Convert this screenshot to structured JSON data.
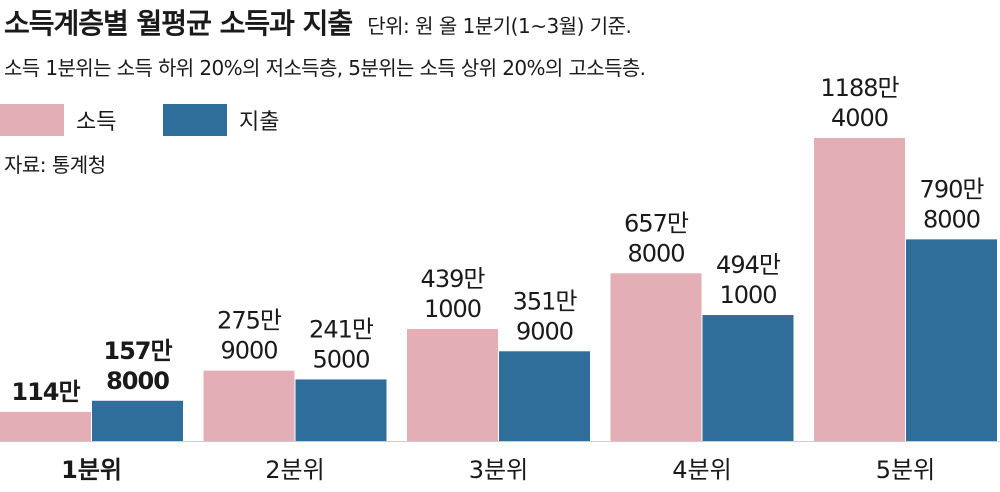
{
  "header": {
    "title": "소득계층별 월평균 소득과 지출",
    "unit": "단위: 원   올 1분기(1~3월) 기준.",
    "note": "소득 1분위는 소득 하위 20%의 저소득층, 5분위는 소득 상위 20%의 고소득층.",
    "source": "자료: 통계청"
  },
  "colors": {
    "income": "#e3aeb6",
    "spending": "#2f6e9b",
    "text": "#1a1a1a",
    "baseline": "#cccccc"
  },
  "chart_data": {
    "type": "bar",
    "categories": [
      "1분위",
      "2분위",
      "3분위",
      "4분위",
      "5분위"
    ],
    "series": [
      {
        "name": "소득",
        "values": [
          1140000,
          2759000,
          4391000,
          6578000,
          11884000
        ],
        "labels": [
          [
            "114만"
          ],
          [
            "275만",
            "9000"
          ],
          [
            "439만",
            "1000"
          ],
          [
            "657만",
            "8000"
          ],
          [
            "1188만",
            "4000"
          ]
        ]
      },
      {
        "name": "지출",
        "values": [
          1578000,
          2415000,
          3519000,
          4941000,
          7908000
        ],
        "labels": [
          [
            "157만",
            "8000"
          ],
          [
            "241만",
            "5000"
          ],
          [
            "351만",
            "9000"
          ],
          [
            "494만",
            "1000"
          ],
          [
            "790만",
            "8000"
          ]
        ]
      }
    ],
    "ylim": [
      0,
      11884000
    ],
    "grid": false,
    "legend": "top-left"
  }
}
